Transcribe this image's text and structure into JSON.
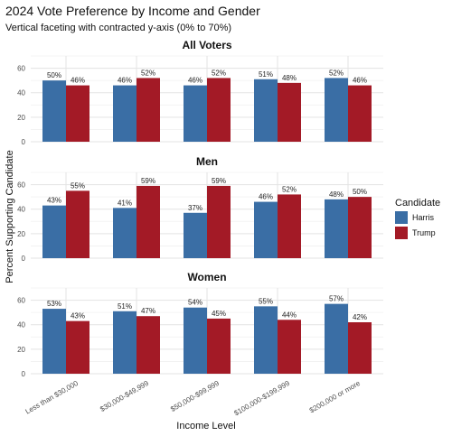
{
  "chart_data": {
    "type": "bar",
    "title": "2024 Vote Preference by Income and Gender",
    "subtitle": "Vertical faceting with contracted y-axis (0% to 70%)",
    "xlabel": "Income Level",
    "ylabel": "Percent Supporting Candidate",
    "ylim": [
      0,
      70
    ],
    "yticks": [
      "0",
      "20",
      "40",
      "60"
    ],
    "grid": true,
    "legend": {
      "title": "Candidate",
      "position": "right",
      "items": [
        {
          "name": "Harris",
          "color": "#3a6ea5"
        },
        {
          "name": "Trump",
          "color": "#a31a26"
        }
      ]
    },
    "categories": [
      "Less than $30,000",
      "$30,000-$49,999",
      "$50,000-$99,999",
      "$100,000-$199,999",
      "$200,000 or more"
    ],
    "facets": [
      {
        "label": "All Voters",
        "series": [
          {
            "name": "Harris",
            "values": [
              50,
              46,
              46,
              51,
              52
            ],
            "labels": [
              "50%",
              "46%",
              "46%",
              "51%",
              "52%"
            ]
          },
          {
            "name": "Trump",
            "values": [
              46,
              52,
              52,
              48,
              46
            ],
            "labels": [
              "46%",
              "52%",
              "52%",
              "48%",
              "46%"
            ]
          }
        ]
      },
      {
        "label": "Men",
        "series": [
          {
            "name": "Harris",
            "values": [
              43,
              41,
              37,
              46,
              48
            ],
            "labels": [
              "43%",
              "41%",
              "37%",
              "46%",
              "48%"
            ]
          },
          {
            "name": "Trump",
            "values": [
              55,
              59,
              59,
              52,
              50
            ],
            "labels": [
              "55%",
              "59%",
              "59%",
              "52%",
              "50%"
            ]
          }
        ]
      },
      {
        "label": "Women",
        "series": [
          {
            "name": "Harris",
            "values": [
              53,
              51,
              54,
              55,
              57
            ],
            "labels": [
              "53%",
              "51%",
              "54%",
              "55%",
              "57%"
            ]
          },
          {
            "name": "Trump",
            "values": [
              43,
              47,
              45,
              44,
              42
            ],
            "labels": [
              "43%",
              "47%",
              "45%",
              "44%",
              "42%"
            ]
          }
        ]
      }
    ]
  }
}
